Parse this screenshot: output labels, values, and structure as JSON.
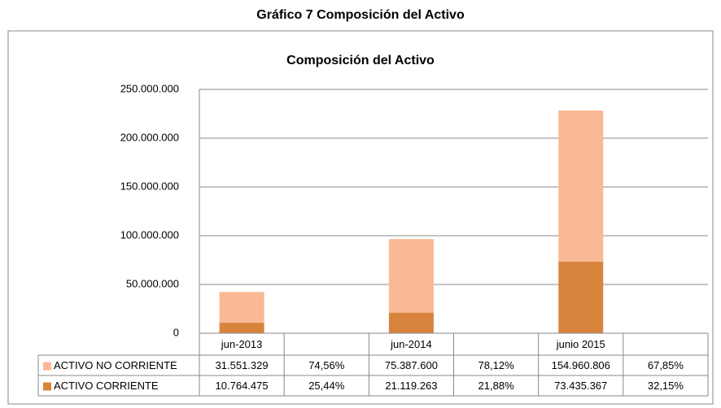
{
  "title": "Gráfico 7  Composición del Activo",
  "chart_data": {
    "type": "stacked-bar",
    "title": "Composición del Activo",
    "categories": [
      "jun-2013",
      null,
      "jun-2014",
      null,
      "junio 2015",
      null
    ],
    "series": [
      {
        "name": "ACTIVO NO CORRIENTE",
        "color": "#f9b994",
        "values": [
          31551329,
          74.56,
          75387600,
          78.12,
          154960806,
          67.85
        ],
        "value_labels": [
          "31.551.329",
          "74,56%",
          "75.387.600",
          "78,12%",
          "154.960.806",
          "67,85%"
        ]
      },
      {
        "name": "ACTIVO CORRIENTE",
        "color": "#d9843d",
        "values": [
          10764475,
          25.44,
          21119263,
          21.88,
          73435367,
          32.15
        ],
        "value_labels": [
          "10.764.475",
          "25,44%",
          "21.119.263",
          "21,88%",
          "73.435.367",
          "32,15%"
        ]
      }
    ],
    "ylim": [
      0,
      250000000
    ],
    "yticks": [
      0,
      {
        "value": 50000000,
        "label": "50.000.000"
      },
      {
        "value": 100000000,
        "label": "100.000.000"
      },
      {
        "value": 150000000,
        "label": "150.000.000"
      },
      {
        "value": 200000000,
        "label": "200.000.000"
      },
      {
        "value": 250000000,
        "label": "250.000.000"
      }
    ],
    "grid": true
  }
}
